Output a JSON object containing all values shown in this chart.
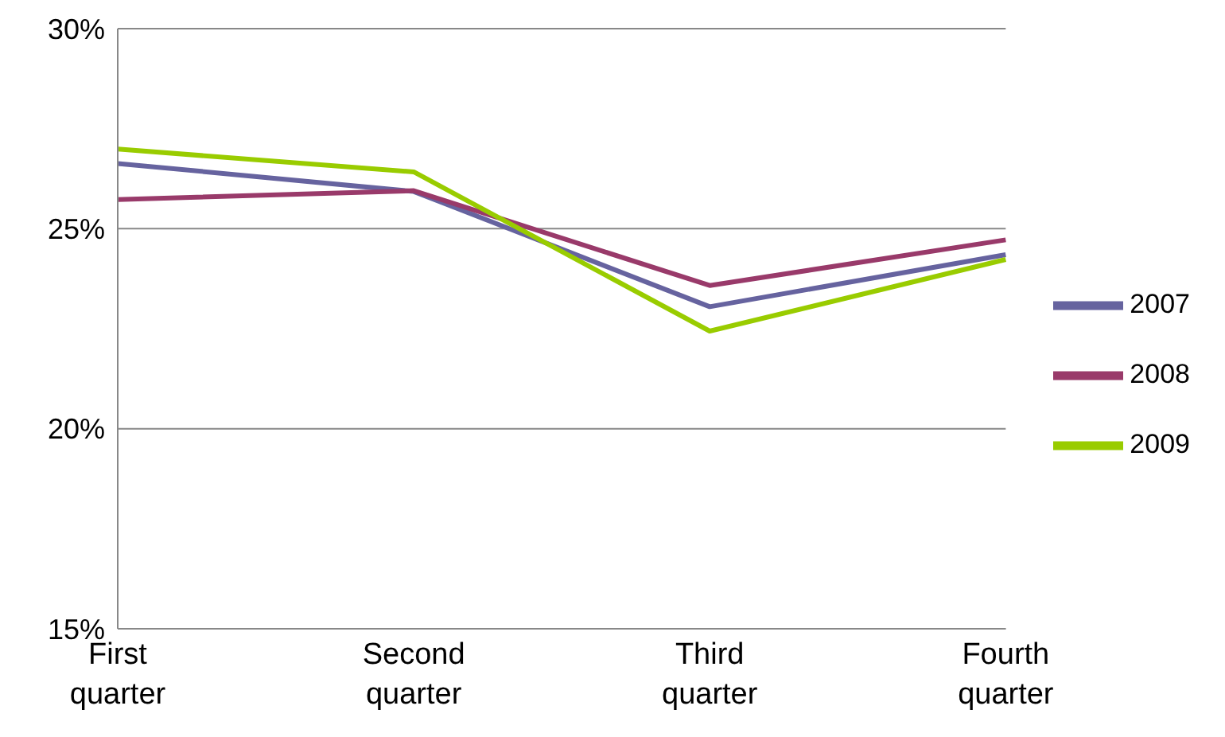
{
  "chart_data": {
    "type": "line",
    "categories": [
      "First quarter",
      "Second quarter",
      "Third quarter",
      "Fourth quarter"
    ],
    "series": [
      {
        "name": "2007",
        "color": "#66639f",
        "values": [
          26.63,
          25.93,
          23.05,
          24.35
        ]
      },
      {
        "name": "2008",
        "color": "#993a6a",
        "values": [
          25.73,
          25.95,
          23.58,
          24.72
        ]
      },
      {
        "name": "2009",
        "color": "#99cc00",
        "values": [
          26.99,
          26.42,
          22.44,
          24.23
        ]
      }
    ],
    "ylim": [
      15,
      30
    ],
    "yticks": [
      {
        "value": 15,
        "label": "15%"
      },
      {
        "value": 20,
        "label": "20%"
      },
      {
        "value": 25,
        "label": "25%"
      },
      {
        "value": 30,
        "label": "30%"
      }
    ],
    "grid": "y",
    "legend": "right",
    "marker": "none",
    "line_style": "solid"
  }
}
